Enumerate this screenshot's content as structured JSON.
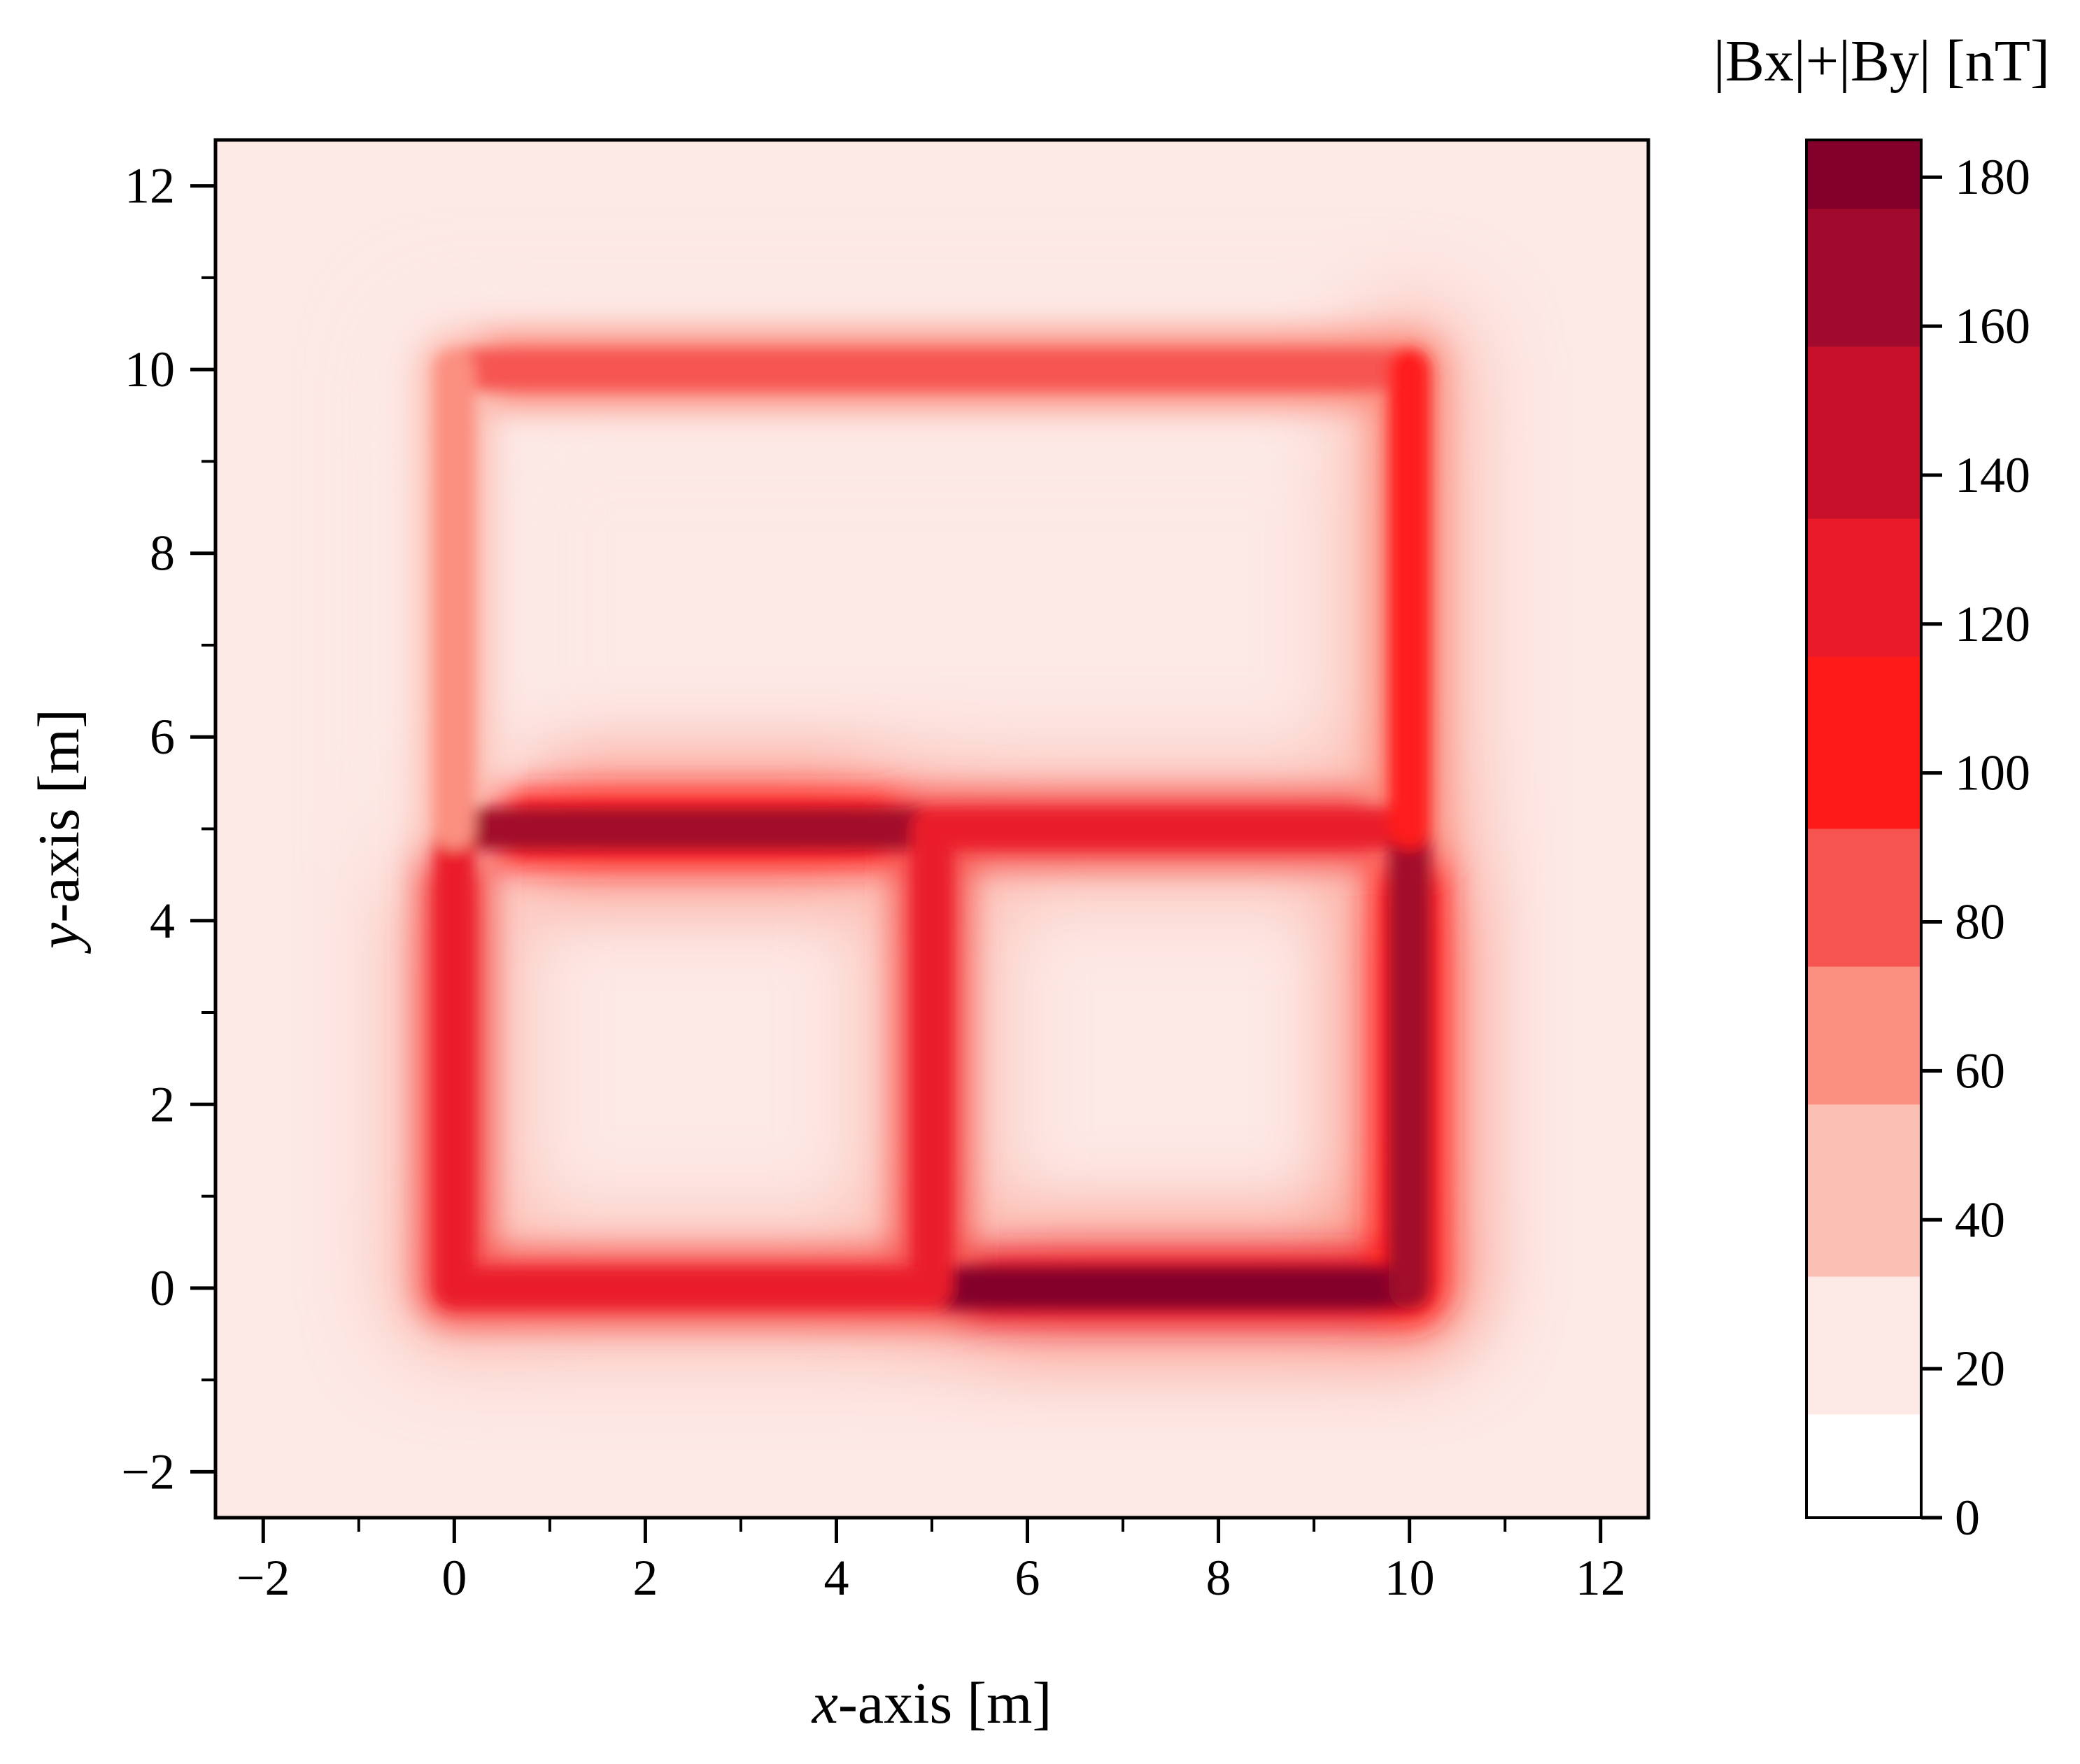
{
  "chart_data": {
    "type": "heatmap",
    "title": "",
    "xlabel": {
      "italic": "x",
      "rest": "-axis [m]"
    },
    "ylabel": {
      "italic": "y",
      "rest": "-axis [m]"
    },
    "xlim": [
      -2.5,
      12.5
    ],
    "ylim": [
      -2.5,
      12.5
    ],
    "x_ticks": [
      -2,
      0,
      2,
      4,
      6,
      8,
      10,
      12
    ],
    "y_ticks": [
      -2,
      0,
      2,
      4,
      6,
      8,
      10,
      12
    ],
    "x_tick_labels": [
      "−2",
      "0",
      "2",
      "4",
      "6",
      "8",
      "10",
      "12"
    ],
    "y_tick_labels": [
      "−2",
      "0",
      "2",
      "4",
      "6",
      "8",
      "10",
      "12"
    ],
    "colorbar": {
      "label": "|Bx|+|By| [nT]",
      "range": [
        0,
        185
      ],
      "ticks": [
        0,
        20,
        40,
        60,
        80,
        100,
        120,
        140,
        160,
        180
      ],
      "tick_labels": [
        "0",
        "20",
        "40",
        "60",
        "80",
        "100",
        "120",
        "140",
        "160",
        "180"
      ],
      "colors": [
        "#ffffff",
        "#fde9e6",
        "#fcbfb4",
        "#fb8f80",
        "#f65451",
        "#ff1a1a",
        "#ea1a2b",
        "#c9102a",
        "#a10a2c",
        "#82002a"
      ]
    },
    "conductor_segments": [
      {
        "from": [
          0,
          10
        ],
        "to": [
          10,
          10
        ],
        "peak": 80
      },
      {
        "from": [
          0,
          5
        ],
        "to": [
          5,
          5
        ],
        "peak": 160
      },
      {
        "from": [
          5,
          5
        ],
        "to": [
          10,
          5
        ],
        "peak": 115
      },
      {
        "from": [
          0,
          0
        ],
        "to": [
          5,
          0
        ],
        "peak": 120
      },
      {
        "from": [
          5,
          0
        ],
        "to": [
          10,
          0
        ],
        "peak": 180
      },
      {
        "from": [
          0,
          0
        ],
        "to": [
          0,
          5
        ],
        "peak": 120
      },
      {
        "from": [
          0,
          5
        ],
        "to": [
          0,
          10
        ],
        "peak": 60
      },
      {
        "from": [
          5,
          0
        ],
        "to": [
          5,
          5
        ],
        "peak": 115
      },
      {
        "from": [
          10,
          0
        ],
        "to": [
          10,
          5
        ],
        "peak": 170
      },
      {
        "from": [
          10,
          5
        ],
        "to": [
          10,
          10
        ],
        "peak": 95
      }
    ],
    "background_level": 12
  }
}
